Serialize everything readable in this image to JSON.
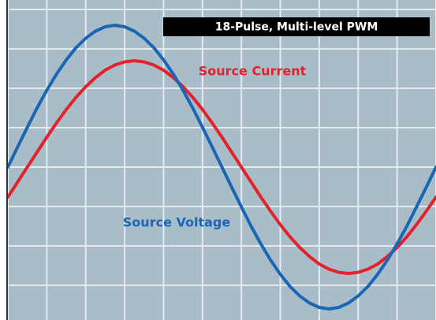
{
  "chart_data": {
    "type": "line",
    "title": "18-Pulse, Multi-level PWM",
    "x": [
      0,
      0.25,
      0.5,
      0.75,
      1,
      1.25,
      1.5,
      1.75,
      2,
      2.25,
      2.5,
      2.75,
      3,
      3.25,
      3.5,
      3.75,
      4,
      4.25,
      4.5,
      4.75,
      5,
      5.25,
      5.5,
      5.75,
      6,
      6.25,
      6.5,
      6.75,
      7,
      7.25,
      7.5,
      7.75,
      8,
      8.25,
      8.5,
      8.75,
      9,
      9.25,
      9.5,
      9.75,
      10,
      10.25,
      10.5,
      10.75,
      11
    ],
    "series": [
      {
        "name": "Source Voltage",
        "color": "#1a66b5",
        "values": [
          0,
          0.51,
          1.01,
          1.5,
          1.95,
          2.36,
          2.72,
          3.03,
          3.27,
          3.45,
          3.56,
          3.6,
          3.56,
          3.45,
          3.27,
          3.03,
          2.72,
          2.36,
          1.95,
          1.5,
          1.01,
          0.51,
          0,
          -0.51,
          -1.01,
          -1.5,
          -1.95,
          -2.36,
          -2.72,
          -3.03,
          -3.27,
          -3.45,
          -3.56,
          -3.6,
          -3.56,
          -3.45,
          -3.27,
          -3.03,
          -2.72,
          -2.36,
          -1.95,
          -1.5,
          -1.01,
          -0.51,
          0
        ]
      },
      {
        "name": "Source Current",
        "color": "#e0232c",
        "values": [
          -0.76,
          -0.38,
          0,
          0.38,
          0.76,
          1.12,
          1.46,
          1.77,
          2.04,
          2.27,
          2.46,
          2.59,
          2.67,
          2.7,
          2.67,
          2.59,
          2.46,
          2.27,
          2.04,
          1.77,
          1.46,
          1.12,
          0.76,
          0.38,
          0,
          -0.38,
          -0.76,
          -1.12,
          -1.46,
          -1.77,
          -2.04,
          -2.27,
          -2.46,
          -2.59,
          -2.67,
          -2.7,
          -2.67,
          -2.59,
          -2.46,
          -2.27,
          -2.04,
          -1.77,
          -1.46,
          -1.12,
          -0.76
        ]
      }
    ],
    "xlim": [
      0,
      11
    ],
    "ylim": [
      -4,
      4
    ],
    "xticks": [
      0,
      1,
      2,
      3,
      4,
      5,
      6,
      7,
      8,
      9,
      10,
      11
    ],
    "yticks": [
      -4,
      -3,
      -2,
      -1,
      0,
      1,
      2,
      3,
      4
    ],
    "grid": true
  }
}
